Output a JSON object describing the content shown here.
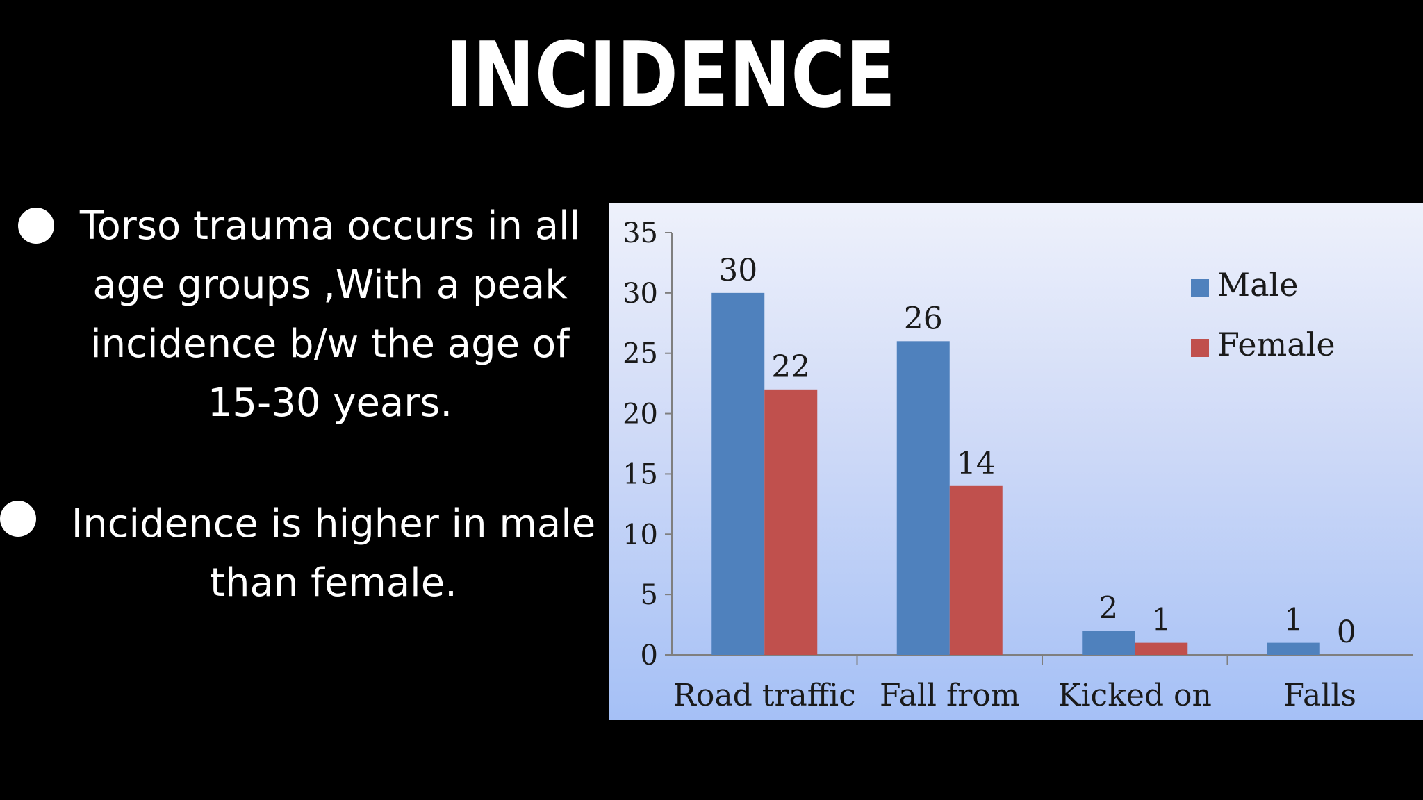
{
  "title": "INCIDENCE",
  "bullets": [
    {
      "lines": [
        "Torso trauma occurs in all",
        "age  groups ,With a peak",
        "incidence b/w the age of",
        "15-30 years."
      ]
    },
    {
      "lines": [
        "Incidence is higher in male",
        "than female."
      ]
    }
  ],
  "chart_data": {
    "type": "bar",
    "categories": [
      "Road traffic",
      "Fall from",
      "Kicked on",
      "Falls"
    ],
    "series": [
      {
        "name": "Male",
        "values": [
          30,
          26,
          2,
          1
        ],
        "color": "#4f81bd"
      },
      {
        "name": "Female",
        "values": [
          22,
          14,
          1,
          0
        ],
        "color": "#c0504d"
      }
    ],
    "yticks": [
      "0",
      "5",
      "10",
      "15",
      "20",
      "25",
      "30",
      "35"
    ],
    "ylim": [
      0,
      35
    ],
    "legend_position": "top-right",
    "grid": false,
    "data_labels": true
  }
}
